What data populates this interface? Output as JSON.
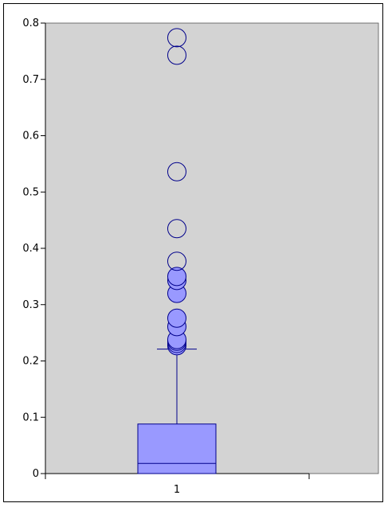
{
  "chart_data": {
    "type": "box",
    "title": "",
    "xlabel": "",
    "ylabel": "",
    "ylim": [
      0,
      0.8
    ],
    "yticks": [
      "0",
      "0.1",
      "0.2",
      "0.3",
      "0.4",
      "0.5",
      "0.6",
      "0.7",
      "0.8"
    ],
    "categories": [
      "1"
    ],
    "grid": false,
    "colors": {
      "plot_background": "#d3d3d3",
      "box_fill": "#9999ff",
      "box_stroke": "#00008b"
    },
    "series": [
      {
        "category": "1",
        "min": 0,
        "q1": 0,
        "median": 0.018,
        "q3": 0.088,
        "whisker_high": 0.221,
        "outliers_filled": [
          0.227,
          0.231,
          0.235,
          0.238,
          0.261,
          0.276,
          0.32,
          0.343,
          0.35
        ],
        "outliers_hollow": [
          0.377,
          0.435,
          0.536,
          0.743,
          0.774
        ]
      }
    ]
  }
}
